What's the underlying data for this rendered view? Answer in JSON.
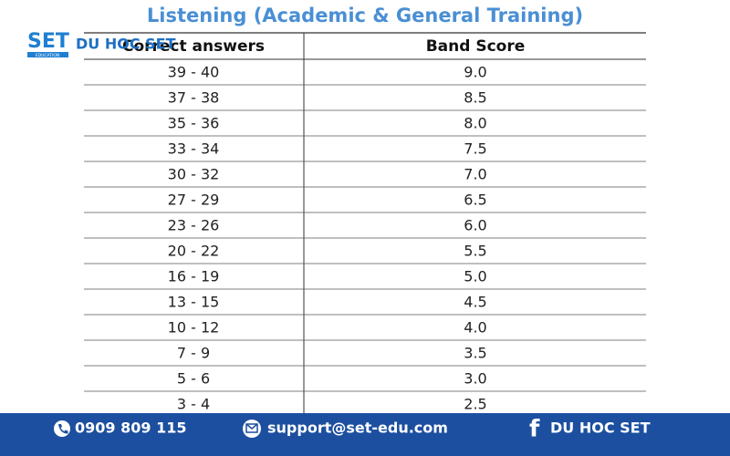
{
  "title": "Listening (Academic & General Training)",
  "logo": {
    "mark": "SET",
    "sub": "EDUCATION",
    "name": "DU HOC SET"
  },
  "table": {
    "header": [
      "Correct answers",
      "Band Score"
    ],
    "rows": [
      [
        "39 - 40",
        "9.0"
      ],
      [
        "37 - 38",
        "8.5"
      ],
      [
        "35 - 36",
        "8.0"
      ],
      [
        "33 - 34",
        "7.5"
      ],
      [
        "30 - 32",
        "7.0"
      ],
      [
        "27 - 29",
        "6.5"
      ],
      [
        "23 - 26",
        "6.0"
      ],
      [
        "20 - 22",
        "5.5"
      ],
      [
        "16 - 19",
        "5.0"
      ],
      [
        "13 - 15",
        "4.5"
      ],
      [
        "10 - 12",
        "4.0"
      ],
      [
        "7 - 9",
        "3.5"
      ],
      [
        "5 - 6",
        "3.0"
      ],
      [
        "3 - 4",
        "2.5"
      ]
    ]
  },
  "footer": {
    "phone": "0909 809 115",
    "email": "support@set-edu.com",
    "facebook": "DU HOC SET"
  }
}
